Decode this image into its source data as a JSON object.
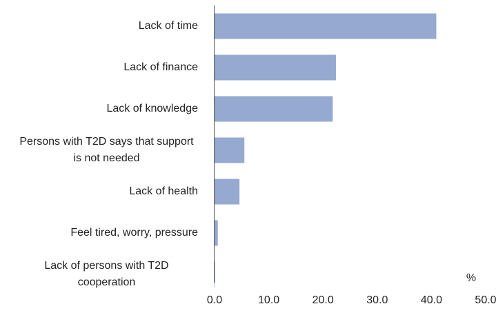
{
  "chart_data": {
    "type": "bar",
    "orientation": "horizontal",
    "categories": [
      "Lack of time",
      "Lack of finance",
      "Lack of knowledge",
      "Persons with T2D says that support is not needed",
      "Lack of health",
      "Feel tired, worry, pressure",
      "Lack of persons with T2D cooperation"
    ],
    "values": [
      40.9,
      22.4,
      21.8,
      5.5,
      4.6,
      0.6,
      0.1
    ],
    "color": "#96a9d1",
    "x_label": "%",
    "xlim": [
      0,
      50
    ],
    "xticks": [
      {
        "value": 0,
        "label": "0.0"
      },
      {
        "value": 10,
        "label": "10.0"
      },
      {
        "value": 20,
        "label": "20.0"
      },
      {
        "value": 30,
        "label": "30.0"
      },
      {
        "value": 40,
        "label": "40.0"
      },
      {
        "value": 50,
        "label": "50.0"
      }
    ],
    "grid": false
  }
}
